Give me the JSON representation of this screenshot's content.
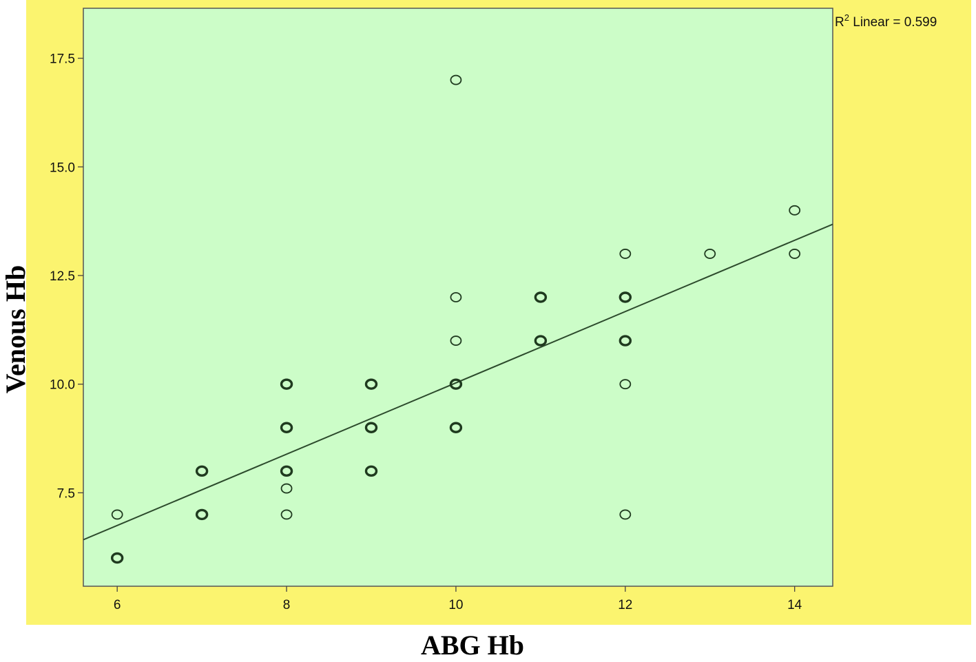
{
  "chart_data": {
    "type": "scatter",
    "xlabel": "ABG Hb",
    "ylabel": "Venous Hb",
    "fit_annotation": {
      "prefix": "R",
      "superscript": "2",
      "text": " Linear = 0.599"
    },
    "xlim": [
      5.6,
      14.45
    ],
    "ylim": [
      5.35,
      18.65
    ],
    "x_ticks": [
      6,
      8,
      10,
      12,
      14
    ],
    "y_ticks": [
      7.5,
      10.0,
      12.5,
      15.0,
      17.5
    ],
    "x_tick_labels": [
      "6",
      "8",
      "10",
      "12",
      "14"
    ],
    "y_tick_labels": [
      "7.5",
      "10.0",
      "12.5",
      "15.0",
      "17.5"
    ],
    "grid": false,
    "points": [
      {
        "x": 6,
        "y": 6,
        "repeated": true
      },
      {
        "x": 6,
        "y": 7,
        "repeated": false
      },
      {
        "x": 7,
        "y": 7,
        "repeated": true
      },
      {
        "x": 7,
        "y": 8,
        "repeated": true
      },
      {
        "x": 8,
        "y": 7,
        "repeated": false
      },
      {
        "x": 8,
        "y": 7.6,
        "repeated": false
      },
      {
        "x": 8,
        "y": 8,
        "repeated": true
      },
      {
        "x": 8,
        "y": 9,
        "repeated": true
      },
      {
        "x": 8,
        "y": 10,
        "repeated": true
      },
      {
        "x": 9,
        "y": 8,
        "repeated": true
      },
      {
        "x": 9,
        "y": 9,
        "repeated": true
      },
      {
        "x": 9,
        "y": 10,
        "repeated": true
      },
      {
        "x": 10,
        "y": 9,
        "repeated": true
      },
      {
        "x": 10,
        "y": 10,
        "repeated": true
      },
      {
        "x": 10,
        "y": 11,
        "repeated": false
      },
      {
        "x": 10,
        "y": 12,
        "repeated": false
      },
      {
        "x": 10,
        "y": 17,
        "repeated": false
      },
      {
        "x": 11,
        "y": 11,
        "repeated": true
      },
      {
        "x": 11,
        "y": 12,
        "repeated": true
      },
      {
        "x": 12,
        "y": 7,
        "repeated": false
      },
      {
        "x": 12,
        "y": 10,
        "repeated": false
      },
      {
        "x": 12,
        "y": 11,
        "repeated": true
      },
      {
        "x": 12,
        "y": 12,
        "repeated": true
      },
      {
        "x": 12,
        "y": 13,
        "repeated": false
      },
      {
        "x": 13,
        "y": 13,
        "repeated": false
      },
      {
        "x": 14,
        "y": 13,
        "repeated": false
      },
      {
        "x": 14,
        "y": 14,
        "repeated": false
      }
    ],
    "fit_line": {
      "x_start": 5.6,
      "y_start": 6.42,
      "x_end": 14.45,
      "y_end": 13.68
    },
    "colors": {
      "outer_background": "#fbf46f",
      "plot_background": "#ccfdc8",
      "point_stroke": "#1f3a1f",
      "fit_line": "#2c4a2c",
      "axis": "#444444"
    }
  }
}
